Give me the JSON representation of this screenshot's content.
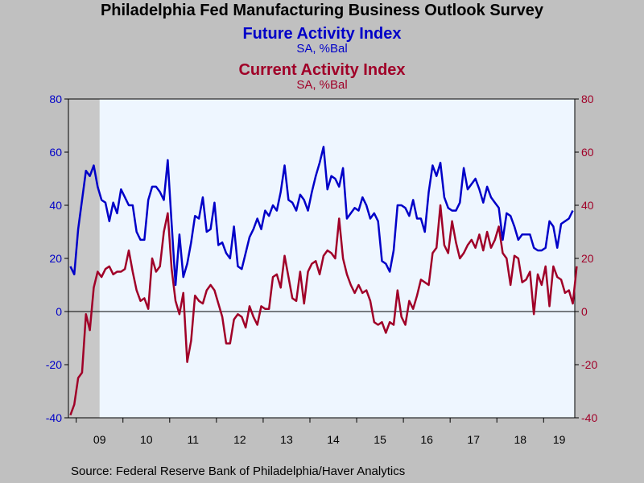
{
  "chart_data": {
    "type": "line",
    "title": "Philadelphia Fed Manufacturing Business Outlook Survey",
    "series": [
      {
        "name": "Future Activity Index",
        "subtitle": "SA, %Bal",
        "color": "#0000c8",
        "axis": "left",
        "start": "2008-11",
        "values": [
          17,
          14,
          31,
          42,
          53,
          51,
          55,
          47,
          42,
          41,
          34,
          41,
          37,
          46,
          43,
          40,
          40,
          30,
          27,
          27,
          42,
          47,
          47,
          45,
          42,
          57,
          33,
          10,
          29,
          13,
          18,
          26,
          36,
          35,
          43,
          30,
          31,
          41,
          25,
          26,
          22,
          20,
          32,
          17,
          16,
          22,
          28,
          31,
          35,
          31,
          38,
          36,
          40,
          38,
          45,
          55,
          42,
          41,
          38,
          44,
          42,
          38,
          45,
          51,
          56,
          62,
          46,
          51,
          50,
          47,
          54,
          35,
          37,
          39,
          38,
          43,
          40,
          35,
          37,
          34,
          19,
          18,
          15,
          23,
          40,
          40,
          39,
          36,
          42,
          35,
          35,
          30,
          45,
          55,
          51,
          56,
          43,
          39,
          38,
          38,
          41,
          54,
          46,
          48,
          50,
          46,
          41,
          47,
          43,
          41,
          39,
          27,
          37,
          36,
          32,
          27,
          29,
          29,
          29,
          24,
          23,
          23,
          24,
          34,
          32,
          24,
          33,
          34,
          35,
          38
        ]
      },
      {
        "name": "Current Activity Index",
        "subtitle": "SA, %Bal",
        "color": "#a00028",
        "axis": "right",
        "start": "2008-11",
        "values": [
          -39,
          -35,
          -25,
          -23,
          -1,
          -7,
          9,
          15,
          13,
          16,
          17,
          14,
          15,
          15,
          16,
          23,
          15,
          8,
          4,
          5,
          1,
          20,
          15,
          17,
          30,
          37,
          16,
          4,
          -1,
          7,
          -19,
          -11,
          6,
          4,
          3,
          8,
          10,
          8,
          3,
          -2,
          -12,
          -12,
          -3,
          -1,
          -2,
          -6,
          2,
          -2,
          -5,
          2,
          1,
          1,
          13,
          14,
          9,
          21,
          13,
          5,
          4,
          15,
          3,
          15,
          18,
          19,
          14,
          21,
          23,
          22,
          20,
          35,
          20,
          14,
          10,
          7,
          10,
          7,
          8,
          4,
          -4,
          -5,
          -4,
          -8,
          -4,
          -5,
          8,
          -2,
          -5,
          4,
          1,
          6,
          12,
          11,
          10,
          22,
          24,
          40,
          25,
          22,
          34,
          26,
          20,
          22,
          25,
          27,
          24,
          29,
          23,
          30,
          24,
          27,
          32,
          22,
          20,
          10,
          21,
          20,
          11,
          12,
          15,
          -1,
          14,
          10,
          17,
          2,
          17,
          13,
          12,
          7,
          8,
          3,
          17
        ]
      }
    ],
    "x_tick_labels": [
      "09",
      "10",
      "11",
      "12",
      "13",
      "14",
      "15",
      "16",
      "17",
      "18",
      "19"
    ],
    "ylim_left": [
      -40,
      80
    ],
    "ylim_right": [
      -40,
      80
    ],
    "y_ticks": [
      -40,
      -20,
      0,
      20,
      40,
      60,
      80
    ],
    "recession_shading": {
      "from": "2008-11",
      "to": "2009-06"
    },
    "source": "Source:  Federal Reserve Bank of Philadelphia/Haver Analytics"
  }
}
